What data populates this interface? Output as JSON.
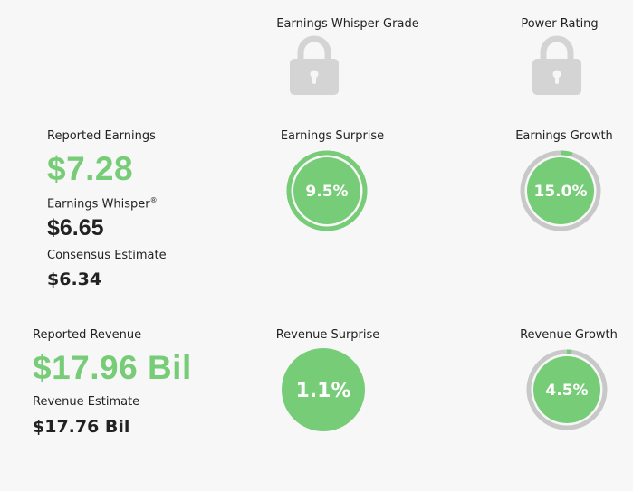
{
  "header": {
    "whisper_grade": "Earnings Whisper Grade",
    "power_rating": "Power Rating"
  },
  "icons": {
    "whisper_grade": "lock-icon",
    "power_rating": "lock-icon"
  },
  "colors": {
    "accent_green": "#77cc77",
    "ring_gray": "#c8c8c8",
    "lock_gray": "#d4d4d4"
  },
  "earnings": {
    "reported_label": "Reported Earnings",
    "reported_value": "$7.28",
    "whisper_label": "Earnings Whisper",
    "whisper_mark": "®",
    "whisper_value": "$6.65",
    "consensus_label": "Consensus Estimate",
    "consensus_value": "$6.34",
    "surprise": {
      "label": "Earnings Surprise",
      "value": "9.5%",
      "fill_fraction": 1.0
    },
    "growth": {
      "label": "Earnings Growth",
      "value": "15.0%",
      "fill_fraction": 0.05
    }
  },
  "revenue": {
    "reported_label": "Reported Revenue",
    "reported_value": "$17.96 Bil",
    "estimate_label": "Revenue Estimate",
    "estimate_value": "$17.76 Bil",
    "surprise": {
      "label": "Revenue Surprise",
      "value": "1.1%",
      "fill_fraction": 1.0
    },
    "growth": {
      "label": "Revenue Growth",
      "value": "4.5%",
      "fill_fraction": 0.02
    }
  }
}
